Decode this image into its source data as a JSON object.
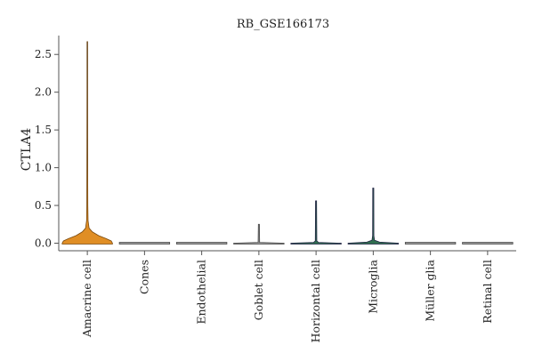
{
  "chart_data": {
    "type": "violin",
    "title": "RB_GSE166173",
    "ylabel": "CTLA4",
    "xlabel": "",
    "ylim": [
      -0.1,
      2.75
    ],
    "yticks": [
      0.0,
      0.5,
      1.0,
      1.5,
      2.0,
      2.5
    ],
    "ytick_labels": [
      "0.0",
      "0.5",
      "1.0",
      "1.5",
      "2.0",
      "2.5"
    ],
    "grid": false,
    "categories": [
      "Amacrine cell",
      "Cones",
      "Endothelial",
      "Goblet cell",
      "Horizontal cell",
      "Microglia",
      "Müller glia",
      "Retinal cell"
    ],
    "violins": [
      {
        "category": "Amacrine cell",
        "max": 2.67,
        "color": "#e08e25",
        "outline": "#7a4a10",
        "profile": [
          [
            0.0,
            1.0
          ],
          [
            0.03,
            0.95
          ],
          [
            0.06,
            0.75
          ],
          [
            0.1,
            0.45
          ],
          [
            0.15,
            0.2
          ],
          [
            0.2,
            0.07
          ],
          [
            0.3,
            0.03
          ],
          [
            0.5,
            0.02
          ],
          [
            1.0,
            0.015
          ],
          [
            1.4,
            0.012
          ],
          [
            2.0,
            0.008
          ],
          [
            2.67,
            0.006
          ]
        ]
      },
      {
        "category": "Cones",
        "max": 0.0,
        "color": "#9a9a9a",
        "outline": "#444",
        "profile": [
          [
            0.0,
            1.0
          ]
        ]
      },
      {
        "category": "Endothelial",
        "max": 0.0,
        "color": "#9a9a9a",
        "outline": "#444",
        "profile": [
          [
            0.0,
            1.0
          ]
        ]
      },
      {
        "category": "Goblet cell",
        "max": 0.25,
        "color": "#9a9a9a",
        "outline": "#444",
        "profile": [
          [
            0.0,
            1.0
          ],
          [
            0.01,
            0.03
          ],
          [
            0.25,
            0.02
          ]
        ]
      },
      {
        "category": "Horizontal cell",
        "max": 0.56,
        "color": "#2f6d4f",
        "outline": "#224",
        "profile": [
          [
            0.0,
            1.0
          ],
          [
            0.01,
            0.1
          ],
          [
            0.03,
            0.03
          ],
          [
            0.56,
            0.02
          ]
        ]
      },
      {
        "category": "Microglia",
        "max": 0.73,
        "color": "#2f6d4f",
        "outline": "#224",
        "profile": [
          [
            0.0,
            1.0
          ],
          [
            0.015,
            0.25
          ],
          [
            0.04,
            0.05
          ],
          [
            0.1,
            0.025
          ],
          [
            0.73,
            0.02
          ]
        ]
      },
      {
        "category": "Müller glia",
        "max": 0.0,
        "color": "#9a9a9a",
        "outline": "#444",
        "profile": [
          [
            0.0,
            1.0
          ]
        ]
      },
      {
        "category": "Retinal cell",
        "max": 0.0,
        "color": "#9a9a9a",
        "outline": "#444",
        "profile": [
          [
            0.0,
            1.0
          ]
        ]
      }
    ]
  }
}
